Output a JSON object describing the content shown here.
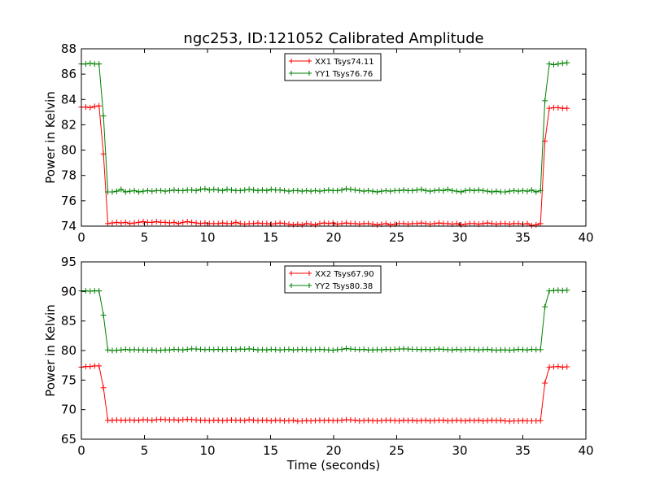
{
  "figure": {
    "title": "ngc253, ID:121052 Calibrated Amplitude"
  },
  "chart_data": [
    {
      "type": "line",
      "title": "ngc253, ID:121052 Calibrated Amplitude",
      "xlabel": "",
      "ylabel": "Power in Kelvin",
      "xlim": [
        0,
        40
      ],
      "ylim": [
        74,
        88
      ],
      "xticks": [
        0,
        5,
        10,
        15,
        20,
        25,
        30,
        35,
        40
      ],
      "yticks": [
        74,
        76,
        78,
        80,
        82,
        84,
        86,
        88
      ],
      "grid": false,
      "legend_position": "top-center",
      "x": [
        0.0,
        0.35,
        0.7,
        1.05,
        1.4,
        1.75,
        2.1,
        2.45,
        2.8,
        3.15,
        3.5,
        3.85,
        4.2,
        4.55,
        4.9,
        5.25,
        5.6,
        5.95,
        6.3,
        6.65,
        7.0,
        7.35,
        7.7,
        8.05,
        8.4,
        8.75,
        9.1,
        9.45,
        9.8,
        10.15,
        10.5,
        10.85,
        11.2,
        11.55,
        11.9,
        12.25,
        12.6,
        12.95,
        13.3,
        13.65,
        14.0,
        14.35,
        14.7,
        15.05,
        15.4,
        15.75,
        16.1,
        16.45,
        16.8,
        17.15,
        17.5,
        17.85,
        18.2,
        18.55,
        18.9,
        19.25,
        19.6,
        19.95,
        20.3,
        20.65,
        21.0,
        21.35,
        21.7,
        22.05,
        22.4,
        22.75,
        23.1,
        23.45,
        23.8,
        24.15,
        24.5,
        24.85,
        25.2,
        25.55,
        25.9,
        26.25,
        26.6,
        26.95,
        27.3,
        27.65,
        28.0,
        28.35,
        28.7,
        29.05,
        29.4,
        29.75,
        30.1,
        30.45,
        30.8,
        31.15,
        31.5,
        31.85,
        32.2,
        32.55,
        32.9,
        33.25,
        33.6,
        33.95,
        34.3,
        34.65,
        35.0,
        35.35,
        35.7,
        36.05,
        36.4,
        36.75,
        37.1,
        37.45,
        37.8,
        38.15,
        38.5
      ],
      "series": [
        {
          "name": "XX1 Tsys74.11",
          "color": "#ff0000",
          "values": [
            83.4,
            83.4,
            83.35,
            83.45,
            83.5,
            79.7,
            74.2,
            74.25,
            74.3,
            74.25,
            74.3,
            74.2,
            74.25,
            74.3,
            74.35,
            74.3,
            74.3,
            74.35,
            74.3,
            74.3,
            74.25,
            74.3,
            74.2,
            74.3,
            74.35,
            74.3,
            74.25,
            74.2,
            74.25,
            74.2,
            74.2,
            74.2,
            74.25,
            74.2,
            74.2,
            74.3,
            74.2,
            74.15,
            74.2,
            74.2,
            74.25,
            74.2,
            74.2,
            74.15,
            74.2,
            74.25,
            74.2,
            74.15,
            74.1,
            74.15,
            74.1,
            74.2,
            74.15,
            74.1,
            74.2,
            74.25,
            74.2,
            74.25,
            74.15,
            74.2,
            74.25,
            74.2,
            74.2,
            74.15,
            74.2,
            74.2,
            74.15,
            74.1,
            74.15,
            74.2,
            74.1,
            74.15,
            74.2,
            74.2,
            74.15,
            74.2,
            74.2,
            74.25,
            74.2,
            74.15,
            74.2,
            74.25,
            74.2,
            74.2,
            74.15,
            74.2,
            74.1,
            74.15,
            74.2,
            74.2,
            74.15,
            74.2,
            74.25,
            74.2,
            74.15,
            74.2,
            74.2,
            74.15,
            74.2,
            74.2,
            74.15,
            74.2,
            74.05,
            74.1,
            74.2,
            80.7,
            83.3,
            83.35,
            83.35,
            83.3,
            83.3
          ]
        },
        {
          "name": "YY1 Tsys76.76",
          "color": "#008000",
          "values": [
            86.8,
            86.8,
            86.85,
            86.8,
            86.8,
            82.7,
            76.7,
            76.7,
            76.75,
            76.9,
            76.7,
            76.75,
            76.8,
            76.7,
            76.75,
            76.8,
            76.75,
            76.8,
            76.8,
            76.75,
            76.8,
            76.85,
            76.8,
            76.8,
            76.85,
            76.85,
            76.8,
            76.9,
            76.95,
            76.85,
            76.9,
            76.85,
            76.8,
            76.9,
            76.85,
            76.8,
            76.8,
            76.85,
            76.9,
            76.85,
            76.8,
            76.85,
            76.8,
            76.9,
            76.85,
            76.85,
            76.8,
            76.75,
            76.8,
            76.8,
            76.75,
            76.8,
            76.75,
            76.8,
            76.75,
            76.8,
            76.85,
            76.8,
            76.8,
            76.85,
            76.95,
            76.9,
            76.85,
            76.8,
            76.75,
            76.8,
            76.75,
            76.7,
            76.75,
            76.8,
            76.75,
            76.8,
            76.8,
            76.85,
            76.8,
            76.8,
            76.85,
            76.9,
            76.8,
            76.75,
            76.8,
            76.85,
            76.8,
            76.9,
            76.8,
            76.75,
            76.7,
            76.8,
            76.85,
            76.8,
            76.85,
            76.8,
            76.75,
            76.7,
            76.75,
            76.7,
            76.7,
            76.75,
            76.8,
            76.75,
            76.8,
            76.75,
            76.85,
            76.7,
            76.8,
            83.9,
            86.8,
            86.75,
            86.8,
            86.85,
            86.9
          ]
        }
      ]
    },
    {
      "type": "line",
      "title": "",
      "xlabel": "Time (seconds)",
      "ylabel": "Power in Kelvin",
      "xlim": [
        0,
        40
      ],
      "ylim": [
        65,
        95
      ],
      "xticks": [
        0,
        5,
        10,
        15,
        20,
        25,
        30,
        35,
        40
      ],
      "yticks": [
        65,
        70,
        75,
        80,
        85,
        90,
        95
      ],
      "grid": false,
      "legend_position": "top-center",
      "x": [
        0.0,
        0.35,
        0.7,
        1.05,
        1.4,
        1.75,
        2.1,
        2.45,
        2.8,
        3.15,
        3.5,
        3.85,
        4.2,
        4.55,
        4.9,
        5.25,
        5.6,
        5.95,
        6.3,
        6.65,
        7.0,
        7.35,
        7.7,
        8.05,
        8.4,
        8.75,
        9.1,
        9.45,
        9.8,
        10.15,
        10.5,
        10.85,
        11.2,
        11.55,
        11.9,
        12.25,
        12.6,
        12.95,
        13.3,
        13.65,
        14.0,
        14.35,
        14.7,
        15.05,
        15.4,
        15.75,
        16.1,
        16.45,
        16.8,
        17.15,
        17.5,
        17.85,
        18.2,
        18.55,
        18.9,
        19.25,
        19.6,
        19.95,
        20.3,
        20.65,
        21.0,
        21.35,
        21.7,
        22.05,
        22.4,
        22.75,
        23.1,
        23.45,
        23.8,
        24.15,
        24.5,
        24.85,
        25.2,
        25.55,
        25.9,
        26.25,
        26.6,
        26.95,
        27.3,
        27.65,
        28.0,
        28.35,
        28.7,
        29.05,
        29.4,
        29.75,
        30.1,
        30.45,
        30.8,
        31.15,
        31.5,
        31.85,
        32.2,
        32.55,
        32.9,
        33.25,
        33.6,
        33.95,
        34.3,
        34.65,
        35.0,
        35.35,
        35.7,
        36.05,
        36.4,
        36.75,
        37.1,
        37.45,
        37.8,
        38.15,
        38.5
      ],
      "series": [
        {
          "name": "XX2 Tsys67.90",
          "color": "#ff0000",
          "values": [
            77.2,
            77.3,
            77.3,
            77.4,
            77.4,
            73.7,
            68.2,
            68.2,
            68.25,
            68.2,
            68.2,
            68.25,
            68.2,
            68.2,
            68.3,
            68.25,
            68.2,
            68.3,
            68.35,
            68.3,
            68.25,
            68.3,
            68.2,
            68.3,
            68.35,
            68.3,
            68.25,
            68.2,
            68.2,
            68.15,
            68.2,
            68.2,
            68.15,
            68.2,
            68.25,
            68.2,
            68.2,
            68.15,
            68.3,
            68.2,
            68.15,
            68.2,
            68.2,
            68.1,
            68.2,
            68.2,
            68.1,
            68.15,
            68.2,
            68.05,
            68.1,
            68.15,
            68.1,
            68.15,
            68.2,
            68.15,
            68.2,
            68.15,
            68.15,
            68.2,
            68.3,
            68.25,
            68.2,
            68.1,
            68.15,
            68.2,
            68.15,
            68.1,
            68.15,
            68.2,
            68.2,
            68.15,
            68.1,
            68.2,
            68.15,
            68.2,
            68.1,
            68.15,
            68.2,
            68.1,
            68.15,
            68.2,
            68.2,
            68.1,
            68.15,
            68.2,
            68.15,
            68.1,
            68.2,
            68.15,
            68.2,
            68.1,
            68.15,
            68.2,
            68.15,
            68.2,
            68.1,
            68.05,
            68.1,
            68.1,
            68.15,
            68.1,
            68.1,
            68.1,
            68.15,
            74.5,
            77.2,
            77.25,
            77.3,
            77.2,
            77.25
          ]
        },
        {
          "name": "YY2 Tsys80.38",
          "color": "#008000",
          "values": [
            90.1,
            90.1,
            90.05,
            90.1,
            90.1,
            86.0,
            80.1,
            80.0,
            80.05,
            80.1,
            80.2,
            80.1,
            80.15,
            80.1,
            80.1,
            80.05,
            80.1,
            80.0,
            80.05,
            80.1,
            80.1,
            80.2,
            80.15,
            80.1,
            80.2,
            80.3,
            80.25,
            80.2,
            80.15,
            80.2,
            80.15,
            80.2,
            80.15,
            80.2,
            80.2,
            80.15,
            80.25,
            80.2,
            80.3,
            80.2,
            80.1,
            80.15,
            80.1,
            80.2,
            80.15,
            80.1,
            80.15,
            80.2,
            80.1,
            80.15,
            80.2,
            80.15,
            80.1,
            80.15,
            80.2,
            80.15,
            80.1,
            80.05,
            80.15,
            80.2,
            80.35,
            80.25,
            80.2,
            80.15,
            80.2,
            80.1,
            80.1,
            80.15,
            80.1,
            80.2,
            80.15,
            80.2,
            80.25,
            80.3,
            80.25,
            80.2,
            80.2,
            80.15,
            80.2,
            80.15,
            80.2,
            80.25,
            80.2,
            80.15,
            80.1,
            80.2,
            80.1,
            80.15,
            80.2,
            80.15,
            80.1,
            80.15,
            80.2,
            80.1,
            80.05,
            80.1,
            80.1,
            80.05,
            80.1,
            80.2,
            80.15,
            80.1,
            80.2,
            80.15,
            80.15,
            87.4,
            90.1,
            90.15,
            90.2,
            90.15,
            90.2
          ]
        }
      ]
    }
  ]
}
